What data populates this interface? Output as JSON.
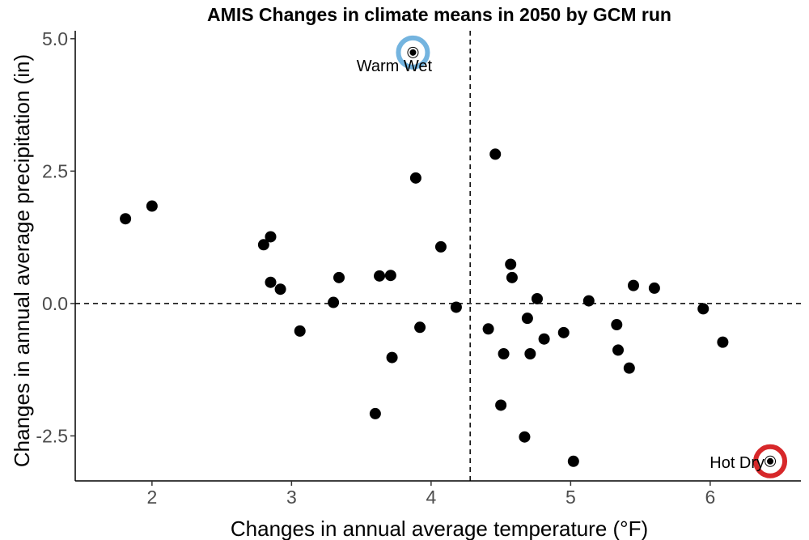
{
  "chart_data": {
    "type": "scatter",
    "title": "AMIS Changes in climate means in 2050 by GCM run",
    "xlabel": "Changes in annual average temperature (°F)",
    "ylabel": "Changes in annual average precipitation (in)",
    "xlim": [
      1.45,
      6.65
    ],
    "ylim": [
      -3.35,
      5.15
    ],
    "x_ticks": [
      2,
      3,
      4,
      5,
      6
    ],
    "x_tick_labels": [
      "2",
      "3",
      "4",
      "5",
      "6"
    ],
    "y_ticks": [
      -2.5,
      0.0,
      2.5,
      5.0
    ],
    "y_tick_labels": [
      "-2.5",
      "0.0",
      "2.5",
      "5.0"
    ],
    "reference_lines": {
      "vertical_x": 4.28,
      "horizontal_y": 0.0,
      "style": "dashed"
    },
    "grid": false,
    "point_color": "#000000",
    "points": [
      {
        "x": 1.81,
        "y": 1.6
      },
      {
        "x": 2.0,
        "y": 1.84
      },
      {
        "x": 2.8,
        "y": 1.11
      },
      {
        "x": 2.85,
        "y": 1.26
      },
      {
        "x": 2.85,
        "y": 0.4
      },
      {
        "x": 2.92,
        "y": 0.27
      },
      {
        "x": 3.06,
        "y": -0.52
      },
      {
        "x": 3.3,
        "y": 0.02
      },
      {
        "x": 3.34,
        "y": 0.49
      },
      {
        "x": 3.6,
        "y": -2.08
      },
      {
        "x": 3.63,
        "y": 0.52
      },
      {
        "x": 3.71,
        "y": 0.53
      },
      {
        "x": 3.72,
        "y": -1.02
      },
      {
        "x": 3.87,
        "y": 4.74
      },
      {
        "x": 3.89,
        "y": 2.37
      },
      {
        "x": 3.92,
        "y": -0.45
      },
      {
        "x": 4.07,
        "y": 1.07
      },
      {
        "x": 4.18,
        "y": -0.07
      },
      {
        "x": 4.41,
        "y": -0.48
      },
      {
        "x": 4.46,
        "y": 2.82
      },
      {
        "x": 4.5,
        "y": -1.92
      },
      {
        "x": 4.52,
        "y": -0.95
      },
      {
        "x": 4.57,
        "y": 0.74
      },
      {
        "x": 4.58,
        "y": 0.49
      },
      {
        "x": 4.67,
        "y": -2.52
      },
      {
        "x": 4.69,
        "y": -0.28
      },
      {
        "x": 4.71,
        "y": -0.95
      },
      {
        "x": 4.76,
        "y": 0.09
      },
      {
        "x": 4.81,
        "y": -0.67
      },
      {
        "x": 4.95,
        "y": -0.55
      },
      {
        "x": 5.02,
        "y": -2.98
      },
      {
        "x": 5.13,
        "y": 0.05
      },
      {
        "x": 5.33,
        "y": -0.4
      },
      {
        "x": 5.34,
        "y": -0.88
      },
      {
        "x": 5.42,
        "y": -1.22
      },
      {
        "x": 5.45,
        "y": 0.34
      },
      {
        "x": 5.6,
        "y": 0.29
      },
      {
        "x": 5.95,
        "y": -0.1
      },
      {
        "x": 6.09,
        "y": -0.73
      },
      {
        "x": 6.43,
        "y": -2.98
      }
    ],
    "highlights": [
      {
        "label": "Warm Wet",
        "x": 3.87,
        "y": 4.74,
        "ring_color": "#74b4df",
        "dot_color": "#000000"
      },
      {
        "label": "Hot Dry",
        "x": 6.43,
        "y": -2.98,
        "ring_color": "#d7282a",
        "dot_color": "#000000"
      }
    ]
  }
}
